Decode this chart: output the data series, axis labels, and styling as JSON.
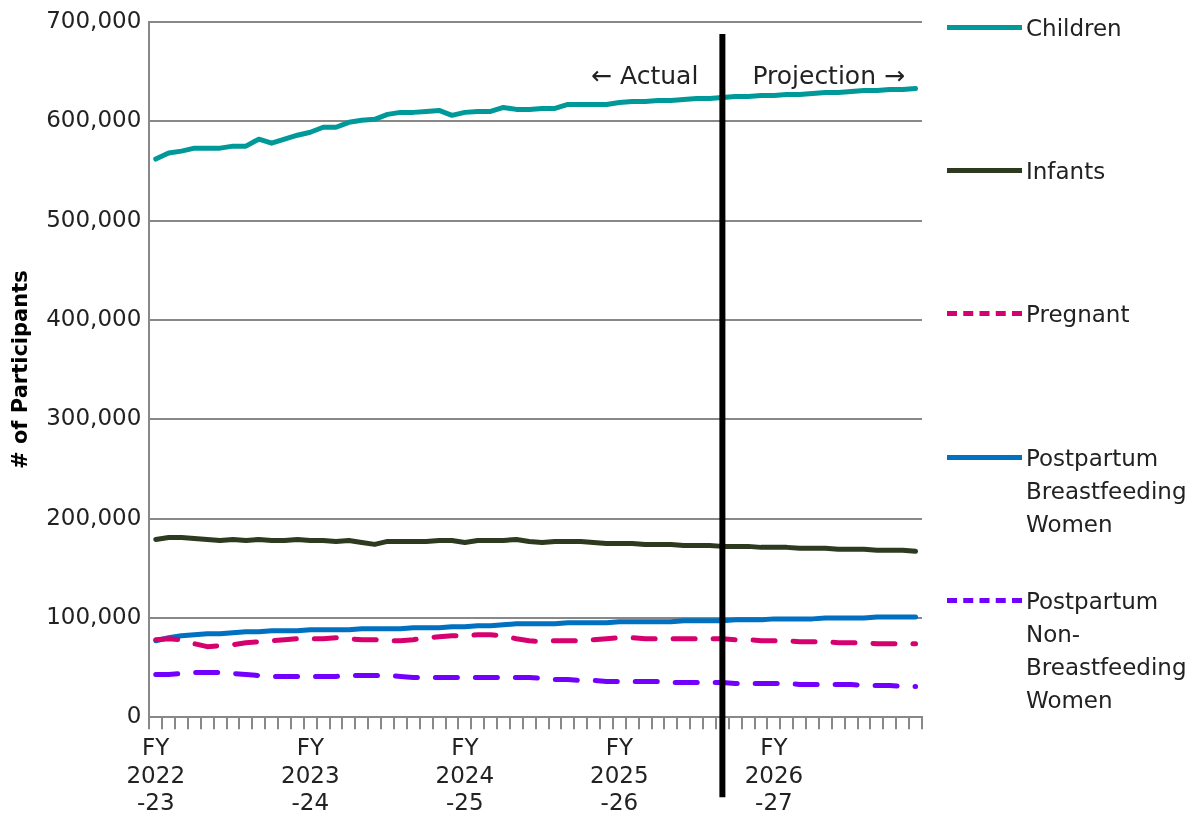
{
  "chart_data": {
    "type": "line",
    "ylabel": "# of Participants",
    "categories": [
      "FY 2022-23",
      null,
      null,
      null,
      null,
      null,
      null,
      null,
      null,
      null,
      null,
      null,
      "FY 2023-24",
      null,
      null,
      null,
      null,
      null,
      null,
      null,
      null,
      null,
      null,
      null,
      "FY 2024-25",
      null,
      null,
      null,
      null,
      null,
      null,
      null,
      null,
      null,
      null,
      null,
      "FY 2025-26",
      null,
      null,
      null,
      null,
      null,
      null,
      null,
      null,
      null,
      null,
      null,
      "FY 2026-27",
      null,
      null,
      null,
      null,
      null,
      null,
      null,
      null,
      null,
      null,
      null
    ],
    "ylim": [
      0,
      700000
    ],
    "yticks": [
      {
        "value": 0,
        "label": "0"
      },
      {
        "value": 100000,
        "label": "100,000"
      },
      {
        "value": 200000,
        "label": "200,000"
      },
      {
        "value": 300000,
        "label": "300,000"
      },
      {
        "value": 400000,
        "label": "400,000"
      },
      {
        "value": 500000,
        "label": "500,000"
      },
      {
        "value": 600000,
        "label": "600,000"
      },
      {
        "value": 700000,
        "label": "700,000"
      }
    ],
    "grid": "y",
    "legend": "right",
    "marker": "none",
    "series": [
      {
        "name": "Children",
        "color": "#009999",
        "values": [
          562000,
          568000,
          570000,
          573000,
          573000,
          573000,
          575000,
          575000,
          582000,
          578000,
          582000,
          586000,
          589000,
          594000,
          594000,
          599000,
          601000,
          602000,
          607000,
          609000,
          609000,
          610000,
          611000,
          606000,
          609000,
          610000,
          610000,
          614000,
          612000,
          612000,
          613000,
          613000,
          617000,
          617000,
          617000,
          617000,
          619000,
          620000,
          620000,
          621000,
          621000,
          622000,
          623000,
          623000,
          624000,
          625000,
          625000,
          626000,
          626000,
          627000,
          627000,
          628000,
          629000,
          629000,
          630000,
          631000,
          631000,
          632000,
          632000,
          633000
        ]
      },
      {
        "name": "Infants",
        "color": "#2d3a1f",
        "values": [
          179000,
          181000,
          181000,
          180000,
          179000,
          178000,
          179000,
          178000,
          179000,
          178000,
          178000,
          179000,
          178000,
          178000,
          177000,
          178000,
          176000,
          174000,
          177000,
          177000,
          177000,
          177000,
          178000,
          178000,
          176000,
          178000,
          178000,
          178000,
          179000,
          177000,
          176000,
          177000,
          177000,
          177000,
          176000,
          175000,
          175000,
          175000,
          174000,
          174000,
          174000,
          173000,
          173000,
          173000,
          172000,
          172000,
          172000,
          171000,
          171000,
          171000,
          170000,
          170000,
          170000,
          169000,
          169000,
          169000,
          168000,
          168000,
          168000,
          167000
        ]
      },
      {
        "name": "Pregnant",
        "color": "#d6006f",
        "line_style": "dashed",
        "values": [
          78000,
          79000,
          78000,
          74000,
          71000,
          72000,
          73000,
          75000,
          76000,
          77000,
          78000,
          79000,
          79000,
          79000,
          80000,
          79000,
          78000,
          78000,
          77000,
          77000,
          78000,
          80000,
          81000,
          82000,
          82000,
          83000,
          83000,
          82000,
          79000,
          77000,
          76000,
          77000,
          77000,
          77000,
          78000,
          79000,
          80000,
          80000,
          79000,
          79000,
          79000,
          79000,
          79000,
          79000,
          79000,
          78000,
          78000,
          77000,
          77000,
          77000,
          76000,
          76000,
          76000,
          75000,
          75000,
          75000,
          74000,
          74000,
          74000,
          74000
        ]
      },
      {
        "name": "Postpartum Breastfeeding Women",
        "color": "#0070c0",
        "values": [
          77000,
          80000,
          82000,
          83000,
          84000,
          84000,
          85000,
          86000,
          86000,
          87000,
          87000,
          87000,
          88000,
          88000,
          88000,
          88000,
          89000,
          89000,
          89000,
          89000,
          90000,
          90000,
          90000,
          91000,
          91000,
          92000,
          92000,
          93000,
          94000,
          94000,
          94000,
          94000,
          95000,
          95000,
          95000,
          95000,
          96000,
          96000,
          96000,
          96000,
          96000,
          97000,
          97000,
          97000,
          97000,
          98000,
          98000,
          98000,
          99000,
          99000,
          99000,
          99000,
          100000,
          100000,
          100000,
          100000,
          101000,
          101000,
          101000,
          101000
        ]
      },
      {
        "name": "Postpartum Non-Breastfeeding Women",
        "color": "#7300ff",
        "line_style": "dashed",
        "values": [
          43000,
          43000,
          44000,
          45000,
          45000,
          45000,
          44000,
          43000,
          42000,
          41000,
          41000,
          41000,
          41000,
          41000,
          41000,
          42000,
          42000,
          42000,
          42000,
          41000,
          40000,
          40000,
          40000,
          40000,
          40000,
          40000,
          40000,
          40000,
          40000,
          40000,
          39000,
          38000,
          38000,
          37000,
          37000,
          36000,
          36000,
          36000,
          36000,
          36000,
          35000,
          35000,
          35000,
          35000,
          35000,
          34000,
          34000,
          34000,
          34000,
          34000,
          33000,
          33000,
          33000,
          33000,
          33000,
          32000,
          32000,
          32000,
          31000,
          31000
        ]
      }
    ],
    "annotations": [
      "← Actual",
      "Projection →"
    ]
  }
}
